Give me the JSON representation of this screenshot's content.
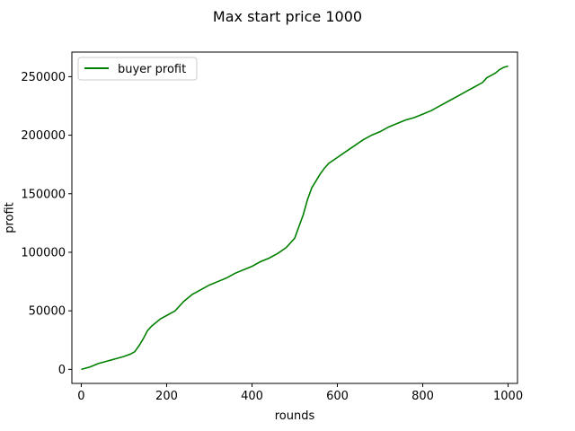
{
  "chart_data": {
    "type": "line",
    "title": "Max start price 1000",
    "xlabel": "rounds",
    "ylabel": "profit",
    "xlim": [
      -22,
      1022
    ],
    "ylim": [
      -12000,
      271000
    ],
    "xticks": [
      0,
      200,
      400,
      600,
      800,
      1000
    ],
    "yticks": [
      0,
      50000,
      100000,
      150000,
      200000,
      250000
    ],
    "xtick_labels": [
      "0",
      "200",
      "400",
      "600",
      "800",
      "1000"
    ],
    "ytick_labels": [
      "0",
      "50000",
      "100000",
      "150000",
      "200000",
      "250000"
    ],
    "grid": false,
    "legend_position": "upper-left",
    "series": [
      {
        "name": "buyer profit",
        "color": "#008000",
        "x": [
          0,
          20,
          40,
          60,
          80,
          100,
          115,
          125,
          135,
          145,
          155,
          165,
          175,
          185,
          200,
          220,
          240,
          260,
          280,
          300,
          320,
          340,
          360,
          380,
          400,
          420,
          440,
          460,
          480,
          500,
          510,
          520,
          530,
          540,
          550,
          560,
          570,
          580,
          600,
          620,
          640,
          660,
          680,
          700,
          720,
          740,
          760,
          780,
          800,
          820,
          840,
          860,
          880,
          900,
          920,
          940,
          950,
          960,
          970,
          980,
          990,
          1000
        ],
        "y": [
          0,
          2000,
          5000,
          7000,
          9000,
          11000,
          13000,
          15000,
          20000,
          26000,
          33000,
          37000,
          40000,
          43000,
          46000,
          50000,
          58000,
          64000,
          68000,
          72000,
          75000,
          78000,
          82000,
          85000,
          88000,
          92000,
          95000,
          99000,
          104000,
          112000,
          122000,
          132000,
          145000,
          155000,
          161000,
          167000,
          172000,
          176000,
          181000,
          186000,
          191000,
          196000,
          200000,
          203000,
          207000,
          210000,
          213000,
          215000,
          218000,
          221000,
          225000,
          229000,
          233000,
          237000,
          241000,
          245000,
          249000,
          251000,
          253000,
          256000,
          258000,
          259000
        ]
      }
    ]
  }
}
